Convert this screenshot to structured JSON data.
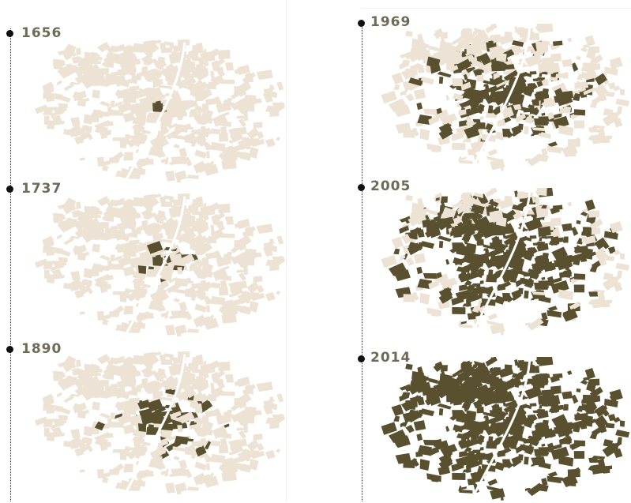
{
  "figure": {
    "colors": {
      "base": "#ede3d4",
      "built": "#595030",
      "year_label": "#6d6a56",
      "dot": "#111111"
    },
    "maps": [
      {
        "year": "1656",
        "built_fraction": 0.01
      },
      {
        "year": "1737",
        "built_fraction": 0.04
      },
      {
        "year": "1890",
        "built_fraction": 0.12
      },
      {
        "year": "1969",
        "built_fraction": 0.38
      },
      {
        "year": "2005",
        "built_fraction": 0.72
      },
      {
        "year": "2014",
        "built_fraction": 1.0
      }
    ]
  }
}
